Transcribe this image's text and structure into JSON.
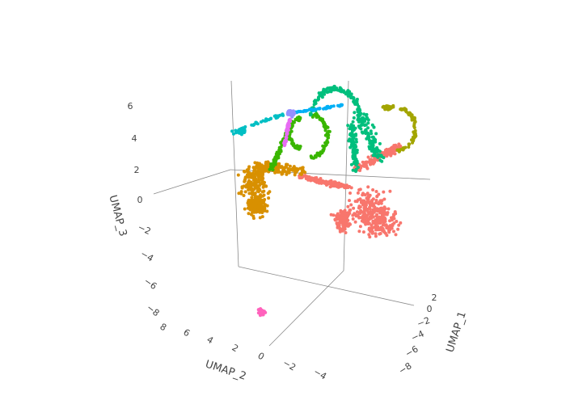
{
  "chart_data": {
    "type": "scatter3d",
    "title": "",
    "axes": {
      "x": {
        "label": "UMAP_1",
        "ticks": [
          "2",
          "0",
          "−2",
          "−4",
          "−6",
          "−8"
        ]
      },
      "y": {
        "label": "UMAP_2",
        "ticks": [
          "8",
          "6",
          "4",
          "2",
          "0",
          "−2",
          "−4"
        ]
      },
      "z": {
        "label": "UMAP_3",
        "ticks": [
          "6",
          "4",
          "2",
          "0",
          "−2",
          "−4",
          "−6",
          "−8"
        ]
      }
    },
    "grid": false,
    "legend": "none",
    "clusters": [
      {
        "id": "c1",
        "color": "#F8766D",
        "n": 700,
        "shape": "large blob, lower right",
        "approx_umap": {
          "x": [
            -6,
            2
          ],
          "z": [
            -4,
            3
          ]
        }
      },
      {
        "id": "c2",
        "color": "#D89000",
        "n": 450,
        "shape": "blob, left",
        "approx_umap": {
          "x": [
            2,
            4
          ],
          "z": [
            -3,
            3
          ]
        }
      },
      {
        "id": "c3",
        "color": "#A3A500",
        "n": 140,
        "shape": "arc, upper right"
      },
      {
        "id": "c4",
        "color": "#39B600",
        "n": 260,
        "shape": "loops, center"
      },
      {
        "id": "c5",
        "color": "#00BF7D",
        "n": 330,
        "shape": "arch, top"
      },
      {
        "id": "c6",
        "color": "#00BFC4",
        "n": 80,
        "shape": "small cluster, upper left"
      },
      {
        "id": "c7",
        "color": "#00B0F6",
        "n": 60,
        "shape": "thin bridge, top"
      },
      {
        "id": "c8",
        "color": "#9590FF",
        "n": 80,
        "shape": "small cluster, top center"
      },
      {
        "id": "c9",
        "color": "#E76BF3",
        "n": 50,
        "shape": "thin stalk, center"
      },
      {
        "id": "c10",
        "color": "#FF62BC",
        "n": 40,
        "shape": "isolated small cluster, bottom"
      }
    ]
  }
}
